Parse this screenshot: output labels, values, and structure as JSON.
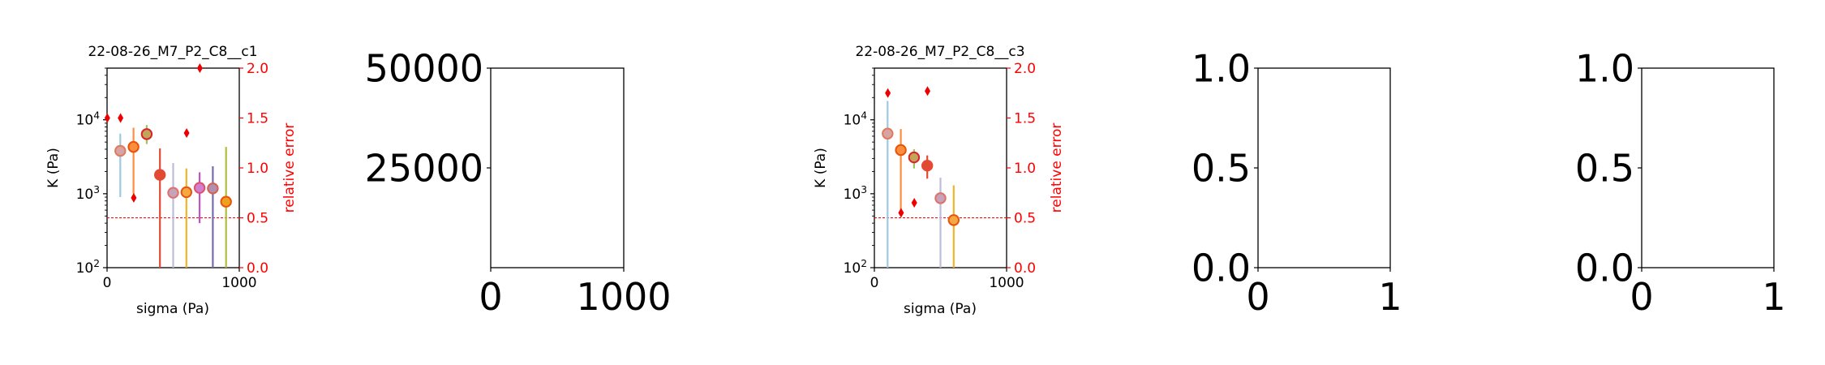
{
  "figure": {
    "background": "#ffffff"
  },
  "chart_data": [
    {
      "type": "scatter",
      "title": "22-08-26_M7_P2_C8__c1",
      "xlabel": "sigma (Pa)",
      "ylabel": "K (Pa)",
      "y2label": "relative error",
      "xlim": [
        0,
        1000
      ],
      "ylim": [
        100,
        50000
      ],
      "yscale": "log",
      "y2lim": [
        0,
        2
      ],
      "xticks": [
        "0",
        "1000"
      ],
      "yticks": [
        "10^2",
        "10^3",
        "10^4"
      ],
      "y2ticks": [
        "0.0",
        "0.5",
        "1.0",
        "1.5",
        "2.0"
      ],
      "grid": false,
      "threshold": 0.5,
      "threshold_color": "#ff0000",
      "error_marker_color": "#ee0000",
      "points": [
        {
          "x": 100,
          "k": 3800,
          "lo": 900,
          "hi": 6500,
          "err": 1.5,
          "bar": "#9ecae1",
          "face": "#d9a3a3",
          "edge": "#e07a5f"
        },
        {
          "x": 200,
          "k": 4300,
          "lo": 1000,
          "hi": 7800,
          "err": 1.5,
          "bar": "#fd8d3c",
          "face": "#fd8d3c",
          "edge": "#e6550d"
        },
        {
          "x": 300,
          "k": 6400,
          "lo": 4700,
          "hi": 8500,
          "err": 0.7,
          "bar": "#a1c45a",
          "face": "#c4a35a",
          "edge": "#d62728"
        },
        {
          "x": 400,
          "k": 1800,
          "lo": 100,
          "hi": 4100,
          "err": null,
          "bar": "#e34a33",
          "face": "#e34a33",
          "edge": "#e34a33"
        },
        {
          "x": 500,
          "k": 1030,
          "lo": 100,
          "hi": 2600,
          "err": null,
          "bar": "#bcbddc",
          "face": "#c5a3b8",
          "edge": "#e0706a"
        },
        {
          "x": 600,
          "k": 1050,
          "lo": 100,
          "hi": 2200,
          "err": null,
          "bar": "#f0b429",
          "face": "#f5a742",
          "edge": "#e6550d"
        },
        {
          "x": 700,
          "k": 1200,
          "lo": 400,
          "hi": 1950,
          "err": 1.35,
          "bar": "#c154c1",
          "face": "#d17fd1",
          "edge": "#e0506a"
        },
        {
          "x": 800,
          "k": 1180,
          "lo": 100,
          "hi": 2350,
          "err": 2.0,
          "bar": "#756bb1",
          "face": "#b08fb0",
          "edge": "#d6604d"
        },
        {
          "x": 900,
          "k": 780,
          "lo": 100,
          "hi": 4300,
          "err": null,
          "bar": "#b5bd3a",
          "face": "#f0a020",
          "edge": "#e6550d"
        }
      ]
    },
    {
      "type": "scatter",
      "title": "",
      "xlim": [
        0,
        1000
      ],
      "ylim": [
        0,
        50000
      ],
      "xticks": [
        "0",
        "1000"
      ],
      "yticks": [
        "25000",
        "50000"
      ],
      "points": []
    },
    {
      "type": "scatter",
      "title": "22-08-26_M7_P2_C8__c3",
      "xlabel": "sigma (Pa)",
      "ylabel": "K (Pa)",
      "y2label": "relative error",
      "xlim": [
        0,
        1000
      ],
      "ylim": [
        100,
        50000
      ],
      "yscale": "log",
      "y2lim": [
        0,
        2
      ],
      "xticks": [
        "0",
        "1000"
      ],
      "yticks": [
        "10^2",
        "10^3",
        "10^4"
      ],
      "y2ticks": [
        "0.0",
        "0.5",
        "1.0",
        "1.5",
        "2.0"
      ],
      "grid": false,
      "threshold": 0.5,
      "threshold_color": "#ff0000",
      "error_marker_color": "#ee0000",
      "points": [
        {
          "x": 100,
          "k": 6500,
          "lo": 100,
          "hi": 18000,
          "err": null,
          "bar": "#9ecae1",
          "face": "#d9a3a3",
          "edge": "#e07a5f"
        },
        {
          "x": 200,
          "k": 3900,
          "lo": 600,
          "hi": 7500,
          "err": 1.75,
          "bar": "#fd8d3c",
          "face": "#fd8d3c",
          "edge": "#e6550d"
        },
        {
          "x": 300,
          "k": 3100,
          "lo": 2200,
          "hi": 4000,
          "err": 0.55,
          "bar": "#a1c45a",
          "face": "#c4a35a",
          "edge": "#d62728"
        },
        {
          "x": 400,
          "k": 2400,
          "lo": 1600,
          "hi": 3300,
          "err": 0.65,
          "bar": "#e34a33",
          "face": "#e34a33",
          "edge": "#e34a33"
        },
        {
          "x": 500,
          "k": 870,
          "lo": 100,
          "hi": 1650,
          "err": 1.77,
          "bar": "#bcbddc",
          "face": "#c5a3b8",
          "edge": "#e0706a"
        },
        {
          "x": 600,
          "k": 440,
          "lo": 100,
          "hi": 1300,
          "err": null,
          "bar": "#f0b429",
          "face": "#f5a742",
          "edge": "#e6550d"
        }
      ]
    },
    {
      "type": "scatter",
      "title": "",
      "xlim": [
        0,
        1
      ],
      "ylim": [
        0,
        1
      ],
      "xticks": [
        "0",
        "1"
      ],
      "yticks": [
        "0.0",
        "0.5",
        "1.0"
      ],
      "points": []
    },
    {
      "type": "scatter",
      "title": "",
      "xlim": [
        0,
        1
      ],
      "ylim": [
        0,
        1
      ],
      "xticks": [
        "0",
        "1"
      ],
      "yticks": [
        "0.0",
        "0.5",
        "1.0"
      ],
      "points": []
    }
  ]
}
